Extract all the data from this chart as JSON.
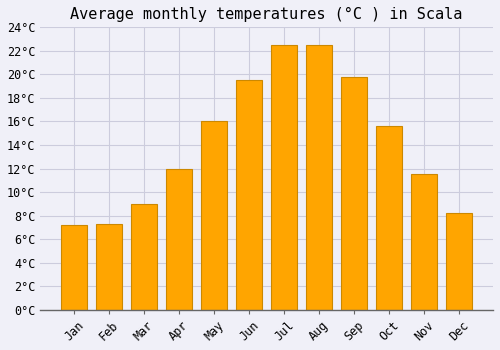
{
  "title": "Average monthly temperatures (°C ) in Scala",
  "months": [
    "Jan",
    "Feb",
    "Mar",
    "Apr",
    "May",
    "Jun",
    "Jul",
    "Aug",
    "Sep",
    "Oct",
    "Nov",
    "Dec"
  ],
  "temperatures": [
    7.2,
    7.3,
    9.0,
    12.0,
    16.0,
    19.5,
    22.5,
    22.5,
    19.8,
    15.6,
    11.5,
    8.2
  ],
  "bar_color": "#FFA500",
  "bar_edge_color": "#CC8800",
  "background_color": "#F0F0F8",
  "plot_area_color": "#F0F0F8",
  "grid_color": "#CCCCDD",
  "ylim": [
    0,
    24
  ],
  "ytick_step": 2,
  "title_fontsize": 11,
  "tick_fontsize": 8.5,
  "font_family": "monospace",
  "bar_width": 0.75
}
